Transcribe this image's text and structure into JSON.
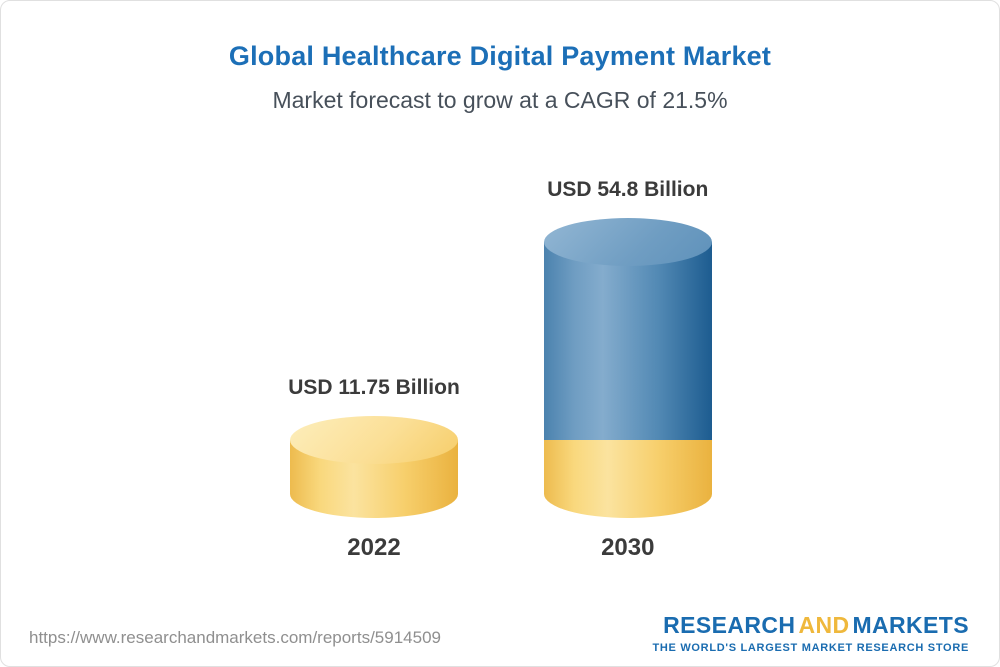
{
  "chart_data": {
    "type": "bar",
    "title": "Global Healthcare Digital Payment Market",
    "subtitle": "Market forecast to grow at a CAGR of 21.5%",
    "cagr_percent": 21.5,
    "categories": [
      "2022",
      "2030"
    ],
    "values": [
      11.75,
      54.8
    ],
    "value_labels": [
      "USD 11.75 Billion",
      "USD 54.8 Billion"
    ],
    "unit": "USD Billion",
    "ylim": [
      0,
      60
    ],
    "bar_colors": [
      "#f6cf6b",
      "#4a81ad"
    ],
    "legend": "none",
    "grid": "off",
    "notes": "3D cylinder bars; 2030 bar shows the 2022 value as a gold base segment under the blue segment"
  },
  "footer": {
    "url": "https://www.researchandmarkets.com/reports/5914509",
    "logo": {
      "research": "RESEARCH",
      "and": "AND",
      "markets": "MARKETS",
      "tagline": "THE WORLD'S LARGEST MARKET RESEARCH STORE"
    }
  },
  "colors": {
    "title_blue": "#1c6fb7",
    "text_dark": "#3b3b3b",
    "subtitle_gray": "#47505a",
    "url_gray": "#8f8f8f",
    "gold": "#f6cf6b",
    "blue": "#4a81ad",
    "logo_blue": "#1a6cb0",
    "logo_gold": "#efb83c"
  }
}
